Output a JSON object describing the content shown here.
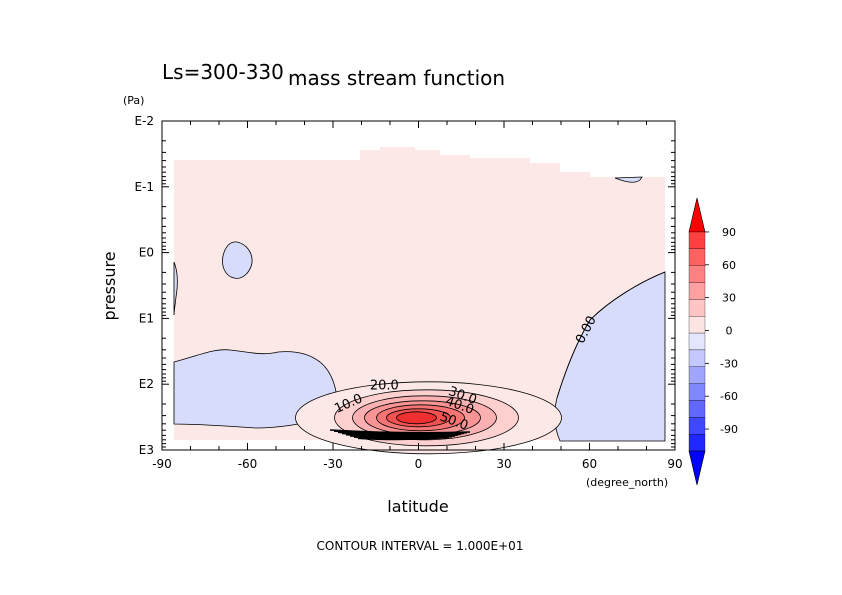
{
  "chart_data": {
    "type": "heatmap",
    "title": "mass stream function",
    "subtitle": "Ls=300-330",
    "xlabel": "latitude",
    "ylabel": "pressure",
    "x_unit": "(degree_north)",
    "y_unit": "(Pa)",
    "x_ticks": [
      "-90",
      "-60",
      "-30",
      "0",
      "30",
      "60",
      "90"
    ],
    "x_tick_values": [
      -90,
      -60,
      -30,
      0,
      30,
      60,
      90
    ],
    "y_ticks": [
      "E-2",
      "E-1",
      "E0",
      "E1",
      "E2",
      "E3"
    ],
    "y_tick_exponents": [
      -2,
      -1,
      0,
      1,
      2,
      3
    ],
    "xlim": [
      -90,
      90
    ],
    "ylim_log10": [
      3,
      -2
    ],
    "y_scale": "log",
    "contour_levels": [
      0,
      10,
      20,
      30,
      40,
      50,
      60
    ],
    "contour_labels": [
      {
        "text": "0.00",
        "lat": 60,
        "log_p": 1.2,
        "angle": -62
      },
      {
        "text": "10.0",
        "lat": -24,
        "log_p": 2.35,
        "angle": -24
      },
      {
        "text": "20.0",
        "lat": -12,
        "log_p": 2.08,
        "angle": 0
      },
      {
        "text": "30.0",
        "lat": 15,
        "log_p": 2.23,
        "angle": 20
      },
      {
        "text": "40.0",
        "lat": 14,
        "log_p": 2.38,
        "angle": 20
      },
      {
        "text": "50.0",
        "lat": 12,
        "log_p": 2.62,
        "angle": 20
      }
    ],
    "colorbar": {
      "ticks": [
        "90",
        "60",
        "30",
        "0",
        "-30",
        "-60",
        "-90"
      ],
      "tick_values": [
        90,
        60,
        30,
        0,
        -30,
        -60,
        -90
      ],
      "positive_color": "#ff0000",
      "negative_color": "#0000ff"
    },
    "footer": "CONTOUR INTERVAL = 1.000E+01"
  }
}
